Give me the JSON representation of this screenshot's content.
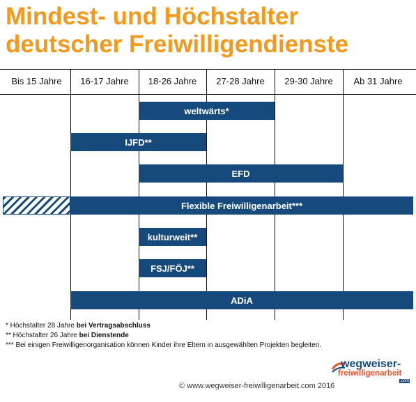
{
  "title": {
    "line1": "Mindest- und Höchstalter",
    "line2": "deutscher Freiwilligendienste"
  },
  "age_groups": [
    "Bis 15 Jahre",
    "16-17 Jahre",
    "18-26 Jahre",
    "27-28 Jahre",
    "29-30 Jahre",
    "Ab 31 Jahre"
  ],
  "programs": [
    {
      "label": "weltwärts*",
      "from": "18-26 Jahre",
      "to": "27-28 Jahre"
    },
    {
      "label": "IJFD**",
      "from": "16-17 Jahre",
      "to": "18-26 Jahre"
    },
    {
      "label": "EFD",
      "from": "18-26 Jahre",
      "to": "29-30 Jahre"
    },
    {
      "label": "Flexible Freiwilligenarbeit***",
      "from": "Bis 15 Jahre",
      "to": "Ab 31 Jahre",
      "hatched_part": "Bis 15 Jahre"
    },
    {
      "label": "kulturweit**",
      "from": "18-26 Jahre",
      "to": "18-26 Jahre"
    },
    {
      "label": "FSJ/FÖJ**",
      "from": "18-26 Jahre",
      "to": "18-26 Jahre"
    },
    {
      "label": "ADiA",
      "from": "16-17 Jahre",
      "to": "Ab 31 Jahre"
    }
  ],
  "footnotes": {
    "note1_prefix": "* Höchstalter 28 Jahre ",
    "note1_bold": "bei Vertragsabschluss",
    "note2_prefix": "** Höchstalter 26 Jahre ",
    "note2_bold": "bei Dienstende",
    "note3": "*** Bei einigen Freiwilligenorganisation können Kinder ihre Eltern in ausgewählten Projekten begleiten."
  },
  "copyright": "© www.wegweiser-freiwilligenarbeit.com 2016",
  "logo": {
    "line1": "wegweiser-",
    "line2": "freiwilligenarbeit",
    "line3": ".com"
  },
  "colors": {
    "title": "#f39a1e",
    "bar": "#174a7c",
    "logo_accent": "#e8542b"
  }
}
